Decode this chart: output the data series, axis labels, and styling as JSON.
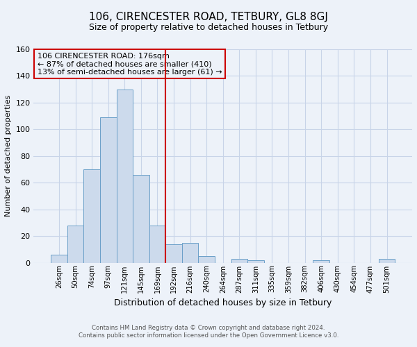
{
  "title": "106, CIRENCESTER ROAD, TETBURY, GL8 8GJ",
  "subtitle": "Size of property relative to detached houses in Tetbury",
  "xlabel": "Distribution of detached houses by size in Tetbury",
  "ylabel": "Number of detached properties",
  "bar_labels": [
    "26sqm",
    "50sqm",
    "74sqm",
    "97sqm",
    "121sqm",
    "145sqm",
    "169sqm",
    "192sqm",
    "216sqm",
    "240sqm",
    "264sqm",
    "287sqm",
    "311sqm",
    "335sqm",
    "359sqm",
    "382sqm",
    "406sqm",
    "430sqm",
    "454sqm",
    "477sqm",
    "501sqm"
  ],
  "bar_heights": [
    6,
    28,
    70,
    109,
    130,
    66,
    28,
    14,
    15,
    5,
    0,
    3,
    2,
    0,
    0,
    0,
    2,
    0,
    0,
    0,
    3
  ],
  "bar_color": "#ccdaec",
  "bar_edgecolor": "#6a9fc8",
  "vline_color": "#cc0000",
  "annotation_line1": "106 CIRENCESTER ROAD: 176sqm",
  "annotation_line2": "← 87% of detached houses are smaller (410)",
  "annotation_line3": "13% of semi-detached houses are larger (61) →",
  "annotation_box_edgecolor": "#cc0000",
  "ylim": [
    0,
    160
  ],
  "yticks": [
    0,
    20,
    40,
    60,
    80,
    100,
    120,
    140,
    160
  ],
  "grid_color": "#c8d4e8",
  "bg_color": "#edf2f9",
  "footer_line1": "Contains HM Land Registry data © Crown copyright and database right 2024.",
  "footer_line2": "Contains public sector information licensed under the Open Government Licence v3.0."
}
